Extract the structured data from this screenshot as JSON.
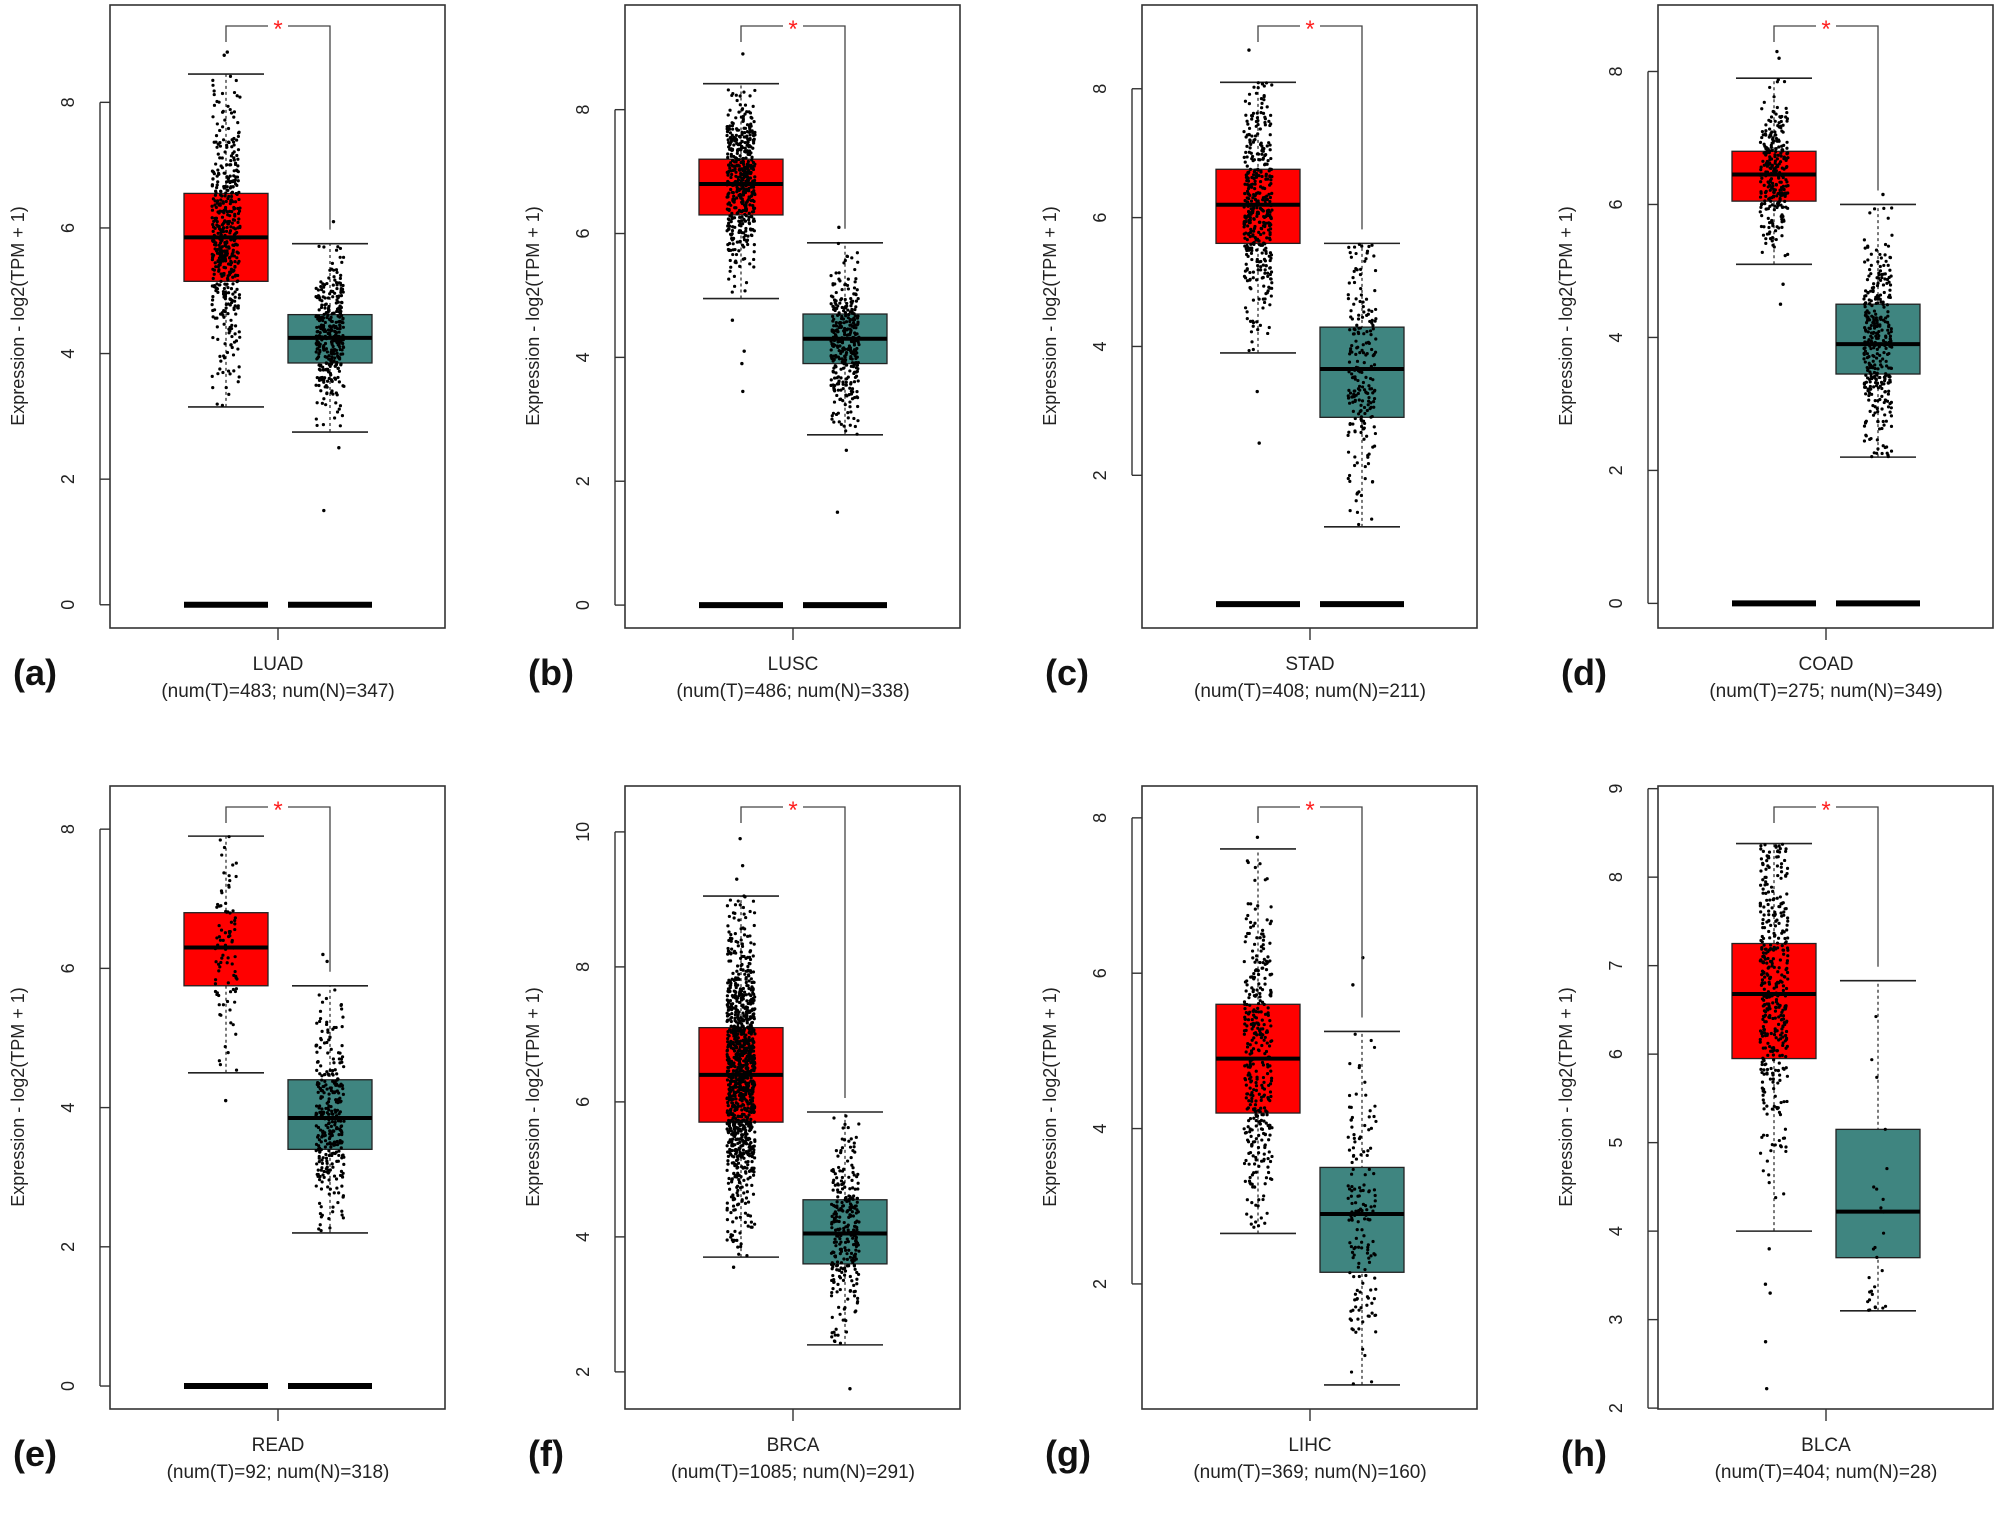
{
  "colors": {
    "tumor": "#ff0000",
    "normal": "#3f8580",
    "points": "#000000",
    "star": "#ff2020"
  },
  "chart_data": [
    {
      "type": "box",
      "panel": "(a)",
      "category": "LUAD",
      "n_label": "(num(T)=483; num(N)=347)",
      "ylabel": "Expression - log2(TPM + 1)",
      "significance": "*",
      "yticks": [
        0,
        2,
        4,
        6,
        8
      ],
      "ylim": [
        -0.37,
        9.55
      ],
      "zero_bars": true,
      "groups": [
        {
          "group": "T",
          "n": 483,
          "whisker_low": 3.15,
          "q1": 5.15,
          "median": 5.85,
          "q3": 6.55,
          "whisker_high": 8.45,
          "outliers": [
            8.75,
            8.8
          ]
        },
        {
          "group": "N",
          "n": 347,
          "whisker_low": 2.75,
          "q1": 3.85,
          "median": 4.25,
          "q3": 4.62,
          "whisker_high": 5.75,
          "outliers": [
            6.1,
            2.5,
            1.5
          ]
        }
      ]
    },
    {
      "type": "box",
      "panel": "(b)",
      "category": "LUSC",
      "n_label": "(num(T)=486; num(N)=338)",
      "ylabel": "Expression - log2(TPM + 1)",
      "significance": "*",
      "yticks": [
        0,
        2,
        4,
        6,
        8
      ],
      "ylim": [
        -0.37,
        9.69
      ],
      "zero_bars": true,
      "groups": [
        {
          "group": "T",
          "n": 486,
          "whisker_low": 4.95,
          "q1": 6.3,
          "median": 6.8,
          "q3": 7.2,
          "whisker_high": 8.42,
          "outliers": [
            8.9,
            4.6,
            4.1,
            3.9,
            3.45
          ]
        },
        {
          "group": "N",
          "n": 338,
          "whisker_low": 2.75,
          "q1": 3.9,
          "median": 4.3,
          "q3": 4.7,
          "whisker_high": 5.85,
          "outliers": [
            6.1,
            2.5,
            1.5
          ]
        }
      ]
    },
    {
      "type": "box",
      "panel": "(c)",
      "category": "STAD",
      "n_label": "(num(T)=408; num(N)=211)",
      "ylabel": "Expression - log2(TPM + 1)",
      "significance": "*",
      "yticks": [
        2,
        4,
        6,
        8
      ],
      "ylim": [
        -0.37,
        9.3
      ],
      "zero_bars": true,
      "groups": [
        {
          "group": "T",
          "n": 408,
          "whisker_low": 3.9,
          "q1": 5.6,
          "median": 6.2,
          "q3": 6.75,
          "whisker_high": 8.1,
          "outliers": [
            8.6,
            3.3,
            2.5
          ]
        },
        {
          "group": "N",
          "n": 211,
          "whisker_low": 1.2,
          "q1": 2.9,
          "median": 3.65,
          "q3": 4.3,
          "whisker_high": 5.6,
          "outliers": []
        }
      ]
    },
    {
      "type": "box",
      "panel": "(d)",
      "category": "COAD",
      "n_label": "(num(T)=275; num(N)=349)",
      "ylabel": "Expression - log2(TPM + 1)",
      "significance": "*",
      "yticks": [
        0,
        2,
        4,
        6,
        8
      ],
      "ylim": [
        -0.37,
        9.0
      ],
      "zero_bars": true,
      "groups": [
        {
          "group": "T",
          "n": 275,
          "whisker_low": 5.1,
          "q1": 6.05,
          "median": 6.45,
          "q3": 6.8,
          "whisker_high": 7.9,
          "outliers": [
            8.2,
            8.3,
            4.5,
            4.8
          ]
        },
        {
          "group": "N",
          "n": 349,
          "whisker_low": 2.2,
          "q1": 3.45,
          "median": 3.9,
          "q3": 4.5,
          "whisker_high": 6.0,
          "outliers": [
            6.15
          ]
        }
      ]
    },
    {
      "type": "box",
      "panel": "(e)",
      "category": "READ",
      "n_label": "(num(T)=92; num(N)=318)",
      "ylabel": "Expression - log2(TPM + 1)",
      "significance": "*",
      "yticks": [
        0,
        2,
        4,
        6,
        8
      ],
      "ylim": [
        -0.33,
        8.62
      ],
      "zero_bars": true,
      "groups": [
        {
          "group": "T",
          "n": 92,
          "whisker_low": 4.5,
          "q1": 5.75,
          "median": 6.3,
          "q3": 6.8,
          "whisker_high": 7.9,
          "outliers": [
            4.1
          ]
        },
        {
          "group": "N",
          "n": 318,
          "whisker_low": 2.2,
          "q1": 3.4,
          "median": 3.85,
          "q3": 4.4,
          "whisker_high": 5.75,
          "outliers": [
            6.2,
            6.1
          ]
        }
      ]
    },
    {
      "type": "box",
      "panel": "(f)",
      "category": "BRCA",
      "n_label": "(num(T)=1085; num(N)=291)",
      "ylabel": "Expression - log2(TPM + 1)",
      "significance": "*",
      "yticks": [
        2,
        4,
        6,
        8,
        10
      ],
      "ylim": [
        1.45,
        10.68
      ],
      "zero_bars": false,
      "groups": [
        {
          "group": "T",
          "n": 1085,
          "whisker_low": 3.7,
          "q1": 5.7,
          "median": 6.4,
          "q3": 7.1,
          "whisker_high": 9.05,
          "outliers": [
            9.9,
            9.5,
            9.3,
            3.55
          ]
        },
        {
          "group": "N",
          "n": 291,
          "whisker_low": 2.4,
          "q1": 3.6,
          "median": 4.05,
          "q3": 4.55,
          "whisker_high": 5.85,
          "outliers": [
            1.75
          ]
        }
      ]
    },
    {
      "type": "box",
      "panel": "(g)",
      "category": "LIHC",
      "n_label": "(num(T)=369; num(N)=160)",
      "ylabel": "Expression - log2(TPM + 1)",
      "significance": "*",
      "yticks": [
        2,
        4,
        6,
        8
      ],
      "ylim": [
        0.39,
        8.41
      ],
      "zero_bars": false,
      "groups": [
        {
          "group": "T",
          "n": 369,
          "whisker_low": 2.65,
          "q1": 4.2,
          "median": 4.9,
          "q3": 5.6,
          "whisker_high": 7.6,
          "outliers": [
            7.75
          ]
        },
        {
          "group": "N",
          "n": 160,
          "whisker_low": 0.7,
          "q1": 2.15,
          "median": 2.9,
          "q3": 3.5,
          "whisker_high": 5.25,
          "outliers": [
            5.85,
            6.2
          ]
        }
      ]
    },
    {
      "type": "box",
      "panel": "(h)",
      "category": "BLCA",
      "n_label": "(num(T)=404; num(N)=28)",
      "ylabel": "Expression - log2(TPM + 1)",
      "significance": "*",
      "yticks": [
        2,
        3,
        4,
        5,
        6,
        7,
        8,
        9
      ],
      "ylim": [
        1.99,
        9.03
      ],
      "zero_bars": false,
      "groups": [
        {
          "group": "T",
          "n": 404,
          "whisker_low": 4.0,
          "q1": 5.95,
          "median": 6.68,
          "q3": 7.25,
          "whisker_high": 8.38,
          "outliers": [
            3.8,
            3.4,
            3.3,
            2.75,
            2.22
          ]
        },
        {
          "group": "N",
          "n": 28,
          "whisker_low": 3.1,
          "q1": 3.7,
          "median": 4.22,
          "q3": 5.15,
          "whisker_high": 6.83,
          "outliers": []
        }
      ]
    }
  ]
}
